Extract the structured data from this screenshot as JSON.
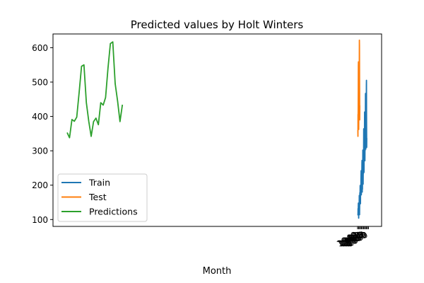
{
  "chart_data": {
    "type": "line",
    "title": "Predicted values by Holt Winters",
    "xlabel": "Month",
    "ylabel": "",
    "ylim": [
      80,
      640
    ],
    "yticks": [
      100,
      200,
      300,
      400,
      500,
      600
    ],
    "xtick_labels": [
      "1949",
      "1950",
      "1951",
      "1952",
      "1953",
      "1954",
      "1955",
      "1956",
      "1957",
      "1958",
      "1959",
      "1960"
    ],
    "legend": {
      "position": "lower-left",
      "entries": [
        "Train",
        "Test",
        "Predictions"
      ]
    },
    "grid": false,
    "series": [
      {
        "name": "Train",
        "color": "#1f77b4",
        "values": [
          112,
          118,
          132,
          129,
          121,
          135,
          148,
          148,
          136,
          119,
          104,
          118,
          115,
          126,
          141,
          135,
          125,
          149,
          170,
          170,
          158,
          133,
          114,
          140,
          145,
          150,
          178,
          163,
          172,
          178,
          199,
          199,
          184,
          162,
          146,
          166,
          171,
          180,
          193,
          181,
          183,
          218,
          230,
          242,
          209,
          191,
          172,
          194,
          196,
          196,
          236,
          235,
          229,
          243,
          264,
          272,
          237,
          211,
          180,
          201,
          204,
          188,
          235,
          227,
          234,
          264,
          302,
          293,
          259,
          229,
          203,
          229,
          242,
          233,
          267,
          269,
          270,
          315,
          364,
          347,
          312,
          274,
          237,
          278,
          284,
          277,
          317,
          313,
          318,
          374,
          413,
          405,
          355,
          306,
          271,
          306,
          315,
          301,
          356,
          348,
          355,
          422,
          465,
          467,
          404,
          347,
          305,
          336,
          340,
          318,
          362,
          348,
          363,
          435,
          491,
          505,
          404,
          359,
          310,
          337
        ]
      },
      {
        "name": "Test",
        "color": "#ff7f0e",
        "values": [
          360,
          342,
          406,
          396,
          420,
          472,
          548,
          559,
          463,
          407,
          362,
          405,
          417,
          391,
          419,
          461,
          472,
          535,
          622,
          606,
          508,
          461,
          390,
          432
        ]
      },
      {
        "name": "Predictions",
        "color": "#2ca02c",
        "values": [
          353,
          338,
          391,
          386,
          398,
          470,
          546,
          550,
          440,
          386,
          342,
          385,
          395,
          376,
          440,
          433,
          455,
          540,
          612,
          617,
          495,
          445,
          385,
          434
        ]
      }
    ]
  }
}
